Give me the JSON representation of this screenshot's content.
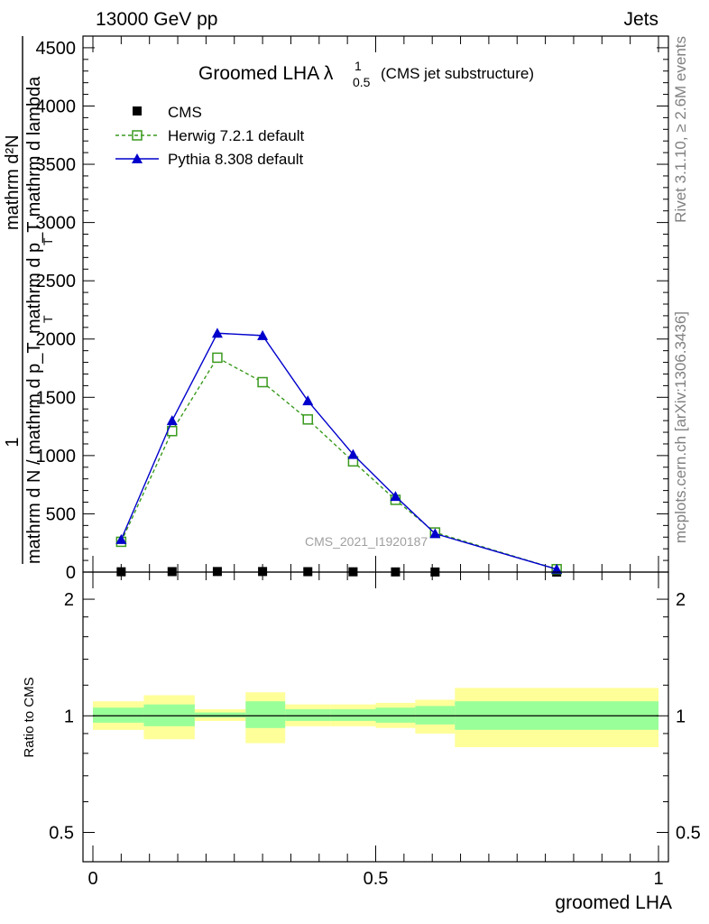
{
  "header": {
    "left": "13000 GeV pp",
    "right": "Jets"
  },
  "side_labels": {
    "top": "Rivet 3.1.10, ≥ 2.6M events",
    "bottom": "mcplots.cern.ch [arXiv:1306.3436]"
  },
  "watermark": "CMS_2021_I1920187",
  "chart_data": {
    "type": "line",
    "title": {
      "main": "Groomed LHA",
      "lambda": "λ",
      "superscript": "1",
      "subscript": "0.5",
      "suffix": "(CMS jet substructure)"
    },
    "ylabel": {
      "one": "1",
      "n_denominator": "mathrm d N / mathrm d p_T",
      "n_subscript": "T",
      "numerator": "mathrm d²N",
      "denominator": "mathrm d p_T mathrm d lambda",
      "denominator_subscript": "T"
    },
    "xlabel": "groomed LHA",
    "xlim": [
      0,
      1
    ],
    "ylim": [
      0,
      4600
    ],
    "yticks": [
      0,
      500,
      1000,
      1500,
      2000,
      2500,
      3000,
      3500,
      4000,
      4500
    ],
    "ytick_labels": [
      "0",
      "500",
      "1000",
      "1500",
      "2000",
      "2500",
      "3000",
      "3500",
      "4000",
      "4500"
    ],
    "xticks": [
      0,
      0.5,
      1
    ],
    "xtick_labels": [
      "0",
      "0.5",
      "1"
    ],
    "legend_position": "top-left",
    "bin_edges": [
      0,
      0.09,
      0.18,
      0.27,
      0.34,
      0.42,
      0.5,
      0.57,
      0.64,
      1.0
    ],
    "series": [
      {
        "name": "CMS",
        "marker": "square-filled",
        "color": "#000000",
        "x": [
          0.05,
          0.14,
          0.22,
          0.3,
          0.38,
          0.46,
          0.535,
          0.605,
          0.82
        ],
        "y": [
          2.7,
          4.1,
          4.9,
          4.9,
          3.6,
          2.5,
          1.6,
          0.9,
          0.1
        ]
      },
      {
        "name": "Herwig 7.2.1 default",
        "marker": "square-open",
        "line": "dashed",
        "color": "#3a9a1e",
        "x": [
          0.05,
          0.14,
          0.22,
          0.3,
          0.38,
          0.46,
          0.535,
          0.605,
          0.82
        ],
        "y": [
          260,
          1210,
          1840,
          1630,
          1310,
          950,
          620,
          340,
          25
        ]
      },
      {
        "name": "Pythia 8.308 default",
        "marker": "triangle-filled",
        "line": "solid",
        "color": "#0000cc",
        "x": [
          0.05,
          0.14,
          0.22,
          0.3,
          0.38,
          0.46,
          0.535,
          0.605,
          0.82
        ],
        "y": [
          280,
          1300,
          2050,
          2030,
          1470,
          1010,
          650,
          330,
          25
        ]
      }
    ],
    "ratio": {
      "ylabel": "Ratio to CMS",
      "ylim": [
        0.42,
        2.35
      ],
      "scale": "log",
      "yticks": [
        0.5,
        1,
        2
      ],
      "ytick_labels": [
        "0.5",
        "1",
        "2"
      ],
      "reference": 1,
      "stat_band": {
        "lo": [
          0.96,
          0.94,
          0.99,
          0.93,
          0.97,
          0.97,
          0.96,
          0.95,
          0.92
        ],
        "hi": [
          1.05,
          1.07,
          1.02,
          1.09,
          1.04,
          1.04,
          1.05,
          1.06,
          1.09
        ],
        "color": "#99ff99"
      },
      "total_band": {
        "lo": [
          0.92,
          0.87,
          0.97,
          0.85,
          0.94,
          0.94,
          0.93,
          0.9,
          0.83
        ],
        "hi": [
          1.09,
          1.13,
          1.04,
          1.15,
          1.07,
          1.07,
          1.08,
          1.1,
          1.18
        ],
        "color": "#ffff99"
      }
    }
  }
}
